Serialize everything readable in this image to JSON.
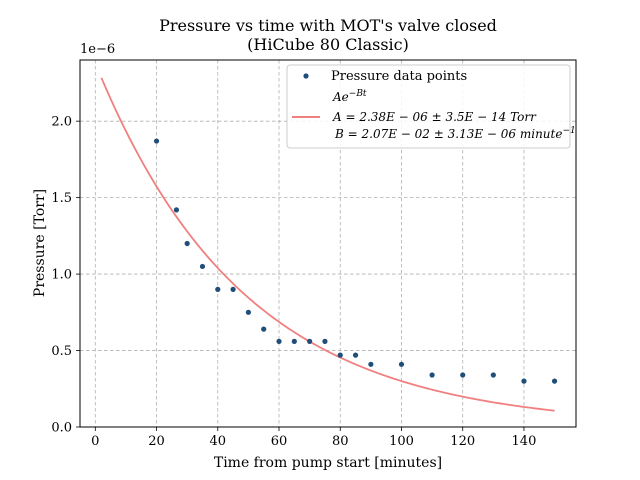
{
  "chart_data": {
    "type": "scatter",
    "title": "Pressure vs time with MOT's valve closed",
    "subtitle": "(HiCube 80 Classic)",
    "xlabel": "Time from pump start [minutes]",
    "ylabel": "Pressure [Torr]",
    "y_scale_label": "1e−6",
    "xlim": [
      -5,
      157
    ],
    "ylim": [
      0,
      2.4
    ],
    "x_ticks": [
      0,
      20,
      40,
      60,
      80,
      100,
      120,
      140
    ],
    "y_ticks": [
      0.0,
      0.5,
      1.0,
      1.5,
      2.0
    ],
    "x_tick_labels": [
      "0",
      "20",
      "40",
      "60",
      "80",
      "100",
      "120",
      "140"
    ],
    "y_tick_labels": [
      "0.0",
      "0.5",
      "1.0",
      "1.5",
      "2.0"
    ],
    "grid": true,
    "legend_position": "top-right",
    "series": [
      {
        "name": "Pressure data points",
        "kind": "scatter",
        "color": "#1f4e79",
        "x": [
          20,
          26.5,
          30,
          35,
          40,
          45,
          50,
          55,
          60,
          65,
          70,
          75,
          80,
          85,
          90,
          100,
          110,
          120,
          130,
          140,
          150
        ],
        "y": [
          1.87,
          1.42,
          1.2,
          1.05,
          0.9,
          0.9,
          0.75,
          0.64,
          0.56,
          0.56,
          0.56,
          0.56,
          0.47,
          0.47,
          0.41,
          0.41,
          0.34,
          0.34,
          0.34,
          0.3,
          0.3
        ]
      },
      {
        "name": "Ae^{-Bt}",
        "kind": "fit",
        "color": "#f08080",
        "formula": "Ae",
        "formula_exp": "−Bt",
        "param_A": "A = 2.38E − 06 ± 3.5E − 14 Torr",
        "param_B": "B = 2.07E − 02 ± 3.13E − 06 minute",
        "param_B_exp": "−1",
        "A": 2.38e-06,
        "B": 0.0207,
        "x_range": [
          2,
          150
        ]
      }
    ]
  }
}
